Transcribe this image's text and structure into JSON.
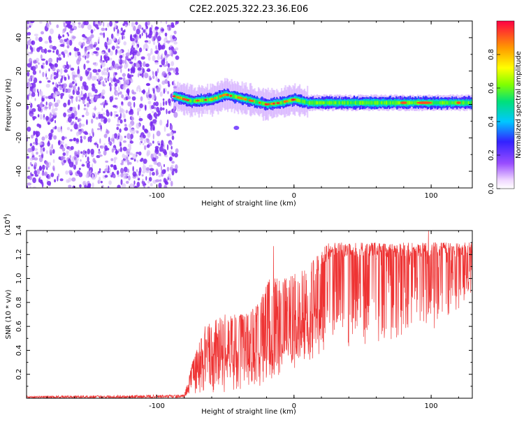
{
  "title": "C2E2.2025.322.23.36.E06",
  "chart_data": [
    {
      "type": "heatmap",
      "xlabel": "Height of straight line (km)",
      "ylabel": "Frequency (Hz)",
      "xlim": [
        -195,
        130
      ],
      "ylim": [
        -50,
        50
      ],
      "xticks": [
        -100,
        0,
        100
      ],
      "xtick_labels": [
        "-100",
        "0",
        "100"
      ],
      "yticks": [
        -40,
        -20,
        0,
        20,
        40
      ],
      "ytick_labels": [
        "-40",
        "-20",
        "0",
        "20",
        "40"
      ],
      "colorbar": {
        "label": "Normalized spectral amplitude",
        "range": [
          0,
          1
        ],
        "ticks": [
          0.0,
          0.2,
          0.4,
          0.6,
          0.8
        ],
        "tick_labels": [
          "0.0",
          "0.2",
          "0.4",
          "0.6",
          "0.8"
        ]
      },
      "features": {
        "noise_region_x": [
          -195,
          -88
        ],
        "noise_amplitude": 0.25,
        "band_start_x": -88,
        "band_center_hz": [
          [
            -88,
            5
          ],
          [
            -75,
            2
          ],
          [
            -60,
            3
          ],
          [
            -50,
            6
          ],
          [
            -40,
            4
          ],
          [
            -30,
            2
          ],
          [
            -20,
            0
          ],
          [
            -10,
            1
          ],
          [
            0,
            3
          ],
          [
            10,
            1
          ],
          [
            130,
            1
          ]
        ],
        "blob": {
          "x": -42,
          "y": -14,
          "amplitude": 0.2
        }
      }
    },
    {
      "type": "line",
      "xlabel": "Height of straight line (km)",
      "ylabel": "SNR (10 * v/v)",
      "y_multiplier": "(x10",
      "y_exponent": "4",
      "xlim": [
        -195,
        130
      ],
      "ylim": [
        0,
        1.4
      ],
      "xticks": [
        -100,
        0,
        100
      ],
      "xtick_labels": [
        "-100",
        "0",
        "100"
      ],
      "yticks": [
        0.2,
        0.4,
        0.6,
        0.8,
        1.0,
        1.2,
        1.4
      ],
      "ytick_labels": [
        "0.2",
        "0.4",
        "0.6",
        "0.8",
        "1.0",
        "1.2",
        "1.4"
      ],
      "color": "#ee3333",
      "series": [
        {
          "name": "SNR",
          "envelope": [
            {
              "x": -195,
              "low": 0.0,
              "high": 0.02
            },
            {
              "x": -80,
              "low": 0.0,
              "high": 0.03
            },
            {
              "x": -74,
              "low": 0.02,
              "high": 0.3
            },
            {
              "x": -65,
              "low": 0.05,
              "high": 0.6
            },
            {
              "x": -50,
              "low": 0.05,
              "high": 0.7
            },
            {
              "x": -35,
              "low": 0.08,
              "high": 0.7
            },
            {
              "x": -25,
              "low": 0.1,
              "high": 0.8
            },
            {
              "x": -18,
              "low": 0.1,
              "high": 1.0
            },
            {
              "x": -5,
              "low": 0.2,
              "high": 1.0
            },
            {
              "x": 10,
              "low": 0.3,
              "high": 1.1
            },
            {
              "x": 25,
              "low": 0.4,
              "high": 1.3
            },
            {
              "x": 50,
              "low": 0.45,
              "high": 1.3
            },
            {
              "x": 75,
              "low": 0.5,
              "high": 1.3
            },
            {
              "x": 100,
              "low": 0.55,
              "high": 1.3
            },
            {
              "x": 130,
              "low": 0.85,
              "high": 1.3
            }
          ],
          "peaks": [
            {
              "x": -15,
              "y": 1.27
            },
            {
              "x": 98,
              "y": 1.4
            }
          ]
        }
      ]
    }
  ]
}
